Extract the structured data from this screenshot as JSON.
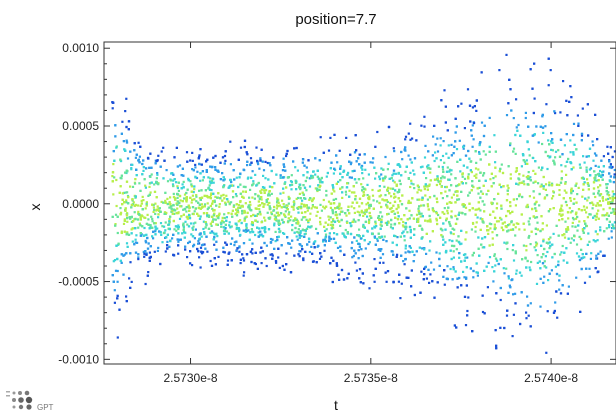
{
  "chart_data": {
    "type": "heatmap",
    "title": "position=7.7",
    "xlabel": "t",
    "ylabel": "x",
    "xlim": [
      2.57276e-08,
      2.57418e-08
    ],
    "ylim": [
      -0.00103,
      0.00104
    ],
    "x_ticks": [
      {
        "value": 2.573e-08,
        "label": "2.5730e-8"
      },
      {
        "value": 2.5735e-08,
        "label": "2.5735e-8"
      },
      {
        "value": 2.574e-08,
        "label": "2.5740e-8"
      }
    ],
    "y_ticks": [
      {
        "value": 0.001,
        "label": "0.0010"
      },
      {
        "value": 0.0005,
        "label": "0.0005"
      },
      {
        "value": 0.0,
        "label": "0.0000"
      },
      {
        "value": -0.0005,
        "label": "-0.0005"
      },
      {
        "value": -0.001,
        "label": "-0.0010"
      }
    ],
    "envelope": {
      "t": [
        2.57278e-08,
        2.57285e-08,
        2.573e-08,
        2.5732e-08,
        2.5734e-08,
        2.5736e-08,
        2.57375e-08,
        2.5739e-08,
        2.574e-08,
        2.57408e-08,
        2.57418e-08
      ],
      "upper": [
        0.0009,
        0.00045,
        0.00038,
        0.0004,
        0.00045,
        0.00052,
        0.00082,
        0.00095,
        0.00096,
        0.00082,
        0.0003
      ],
      "lower": [
        -0.00095,
        -0.0005,
        -0.00043,
        -0.00045,
        -0.0005,
        -0.0006,
        -0.0008,
        -0.001,
        -0.0009,
        -0.00075,
        -0.0003
      ]
    },
    "density_peak": {
      "t": 2.57345e-08,
      "x": 0.0
    },
    "colormap": [
      "#1a4fd6",
      "#2f9be8",
      "#3ad4d8",
      "#66e39a",
      "#b7ef4a"
    ],
    "grid": false,
    "legend": "none"
  },
  "logo": {
    "text": "GPT"
  }
}
